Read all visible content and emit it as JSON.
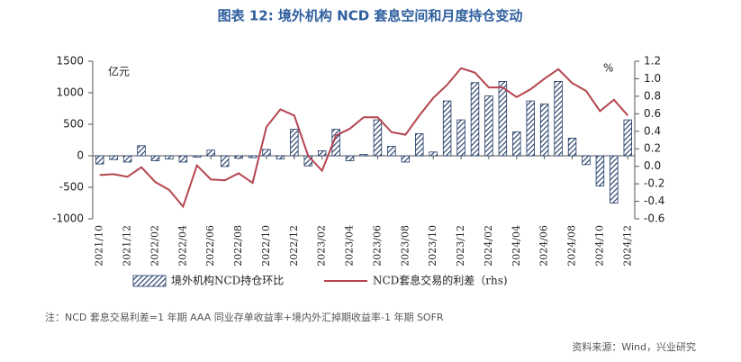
{
  "chart_data": {
    "type": "bar",
    "title": "图表 12: 境外机构 NCD 套息空间和月度持仓变动",
    "y_label": "亿元",
    "y2_label": "%",
    "categories": [
      "2021/10",
      null,
      "2021/12",
      null,
      "2022/02",
      null,
      "2022/04",
      null,
      "2022/06",
      null,
      "2022/08",
      null,
      "2022/10",
      null,
      "2022/12",
      null,
      "2023/02",
      null,
      "2023/04",
      null,
      "2023/06",
      null,
      "2023/08",
      null,
      "2023/10",
      null,
      "2023/12",
      null,
      "2024/02",
      null,
      "2024/04",
      null,
      "2024/06",
      null,
      "2024/08",
      null,
      "2024/10",
      null,
      "2024/12"
    ],
    "series": [
      {
        "name": "境外机构NCD持仓环比",
        "color": "#1f3864",
        "type": "bar",
        "values": [
          -130,
          -60,
          -100,
          160,
          -80,
          -50,
          -100,
          -20,
          90,
          -170,
          -40,
          -30,
          100,
          -50,
          420,
          -160,
          80,
          420,
          -80,
          20,
          570,
          150,
          -100,
          350,
          60,
          870,
          570,
          1160,
          950,
          1180,
          380,
          870,
          820,
          1180,
          280,
          -140,
          -480,
          -750,
          570
        ]
      },
      {
        "name": "NCD套息交易的利差（rhs)",
        "color": "#b5444f",
        "type": "line",
        "axis": "y2",
        "values": [
          -0.1,
          -0.09,
          -0.12,
          -0.01,
          -0.18,
          -0.27,
          -0.46,
          0.01,
          -0.15,
          -0.16,
          -0.08,
          -0.19,
          0.45,
          0.65,
          0.58,
          0.12,
          -0.05,
          0.35,
          0.43,
          0.56,
          0.56,
          0.39,
          0.36,
          0.58,
          0.78,
          0.93,
          1.12,
          1.07,
          0.9,
          0.9,
          0.79,
          0.88,
          1.0,
          1.11,
          0.95,
          0.86,
          0.63,
          0.76,
          0.58
        ]
      }
    ],
    "ylim": [
      -1000,
      1500
    ],
    "yticks": [
      1500,
      1000,
      500,
      0,
      -500,
      -1000
    ],
    "y2lim": [
      -0.6,
      1.2
    ],
    "y2ticks": [
      1.2,
      {
        "value": 1.0,
        "label": "1.0"
      },
      0.8,
      0.6,
      0.4,
      0.2,
      {
        "value": 0,
        "label": "0.0"
      },
      -0.2,
      -0.4,
      -0.6
    ],
    "note": "注：NCD 套息交易利差=1 年期 AAA 同业存单收益率+境内外汇掉期收益率-1 年期 SOFR",
    "source": "资料来源：Wind，兴业研究"
  }
}
